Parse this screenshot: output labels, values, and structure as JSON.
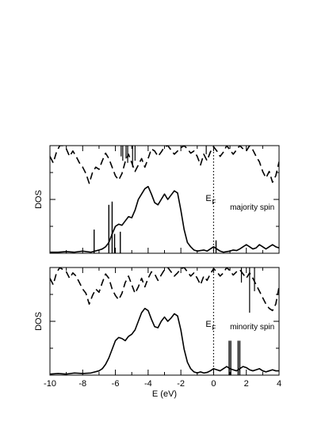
{
  "chart_data": [
    {
      "type": "line",
      "panel": "top",
      "title": "",
      "ylabel": "DOS",
      "xlabel": "",
      "xlim": [
        -10,
        4
      ],
      "x_ticks": [
        -10,
        -8,
        -6,
        -4,
        -2,
        0,
        2,
        4
      ],
      "show_tick_labels": false,
      "annotation": "majority spin",
      "fermi_label": "E",
      "fermi_sub": "F",
      "fermi_x": 0,
      "ylim": [
        0,
        1
      ],
      "series": [
        {
          "style": "dashed",
          "x": [
            -10,
            -9.8,
            -9.6,
            -9.4,
            -9.2,
            -9.0,
            -8.8,
            -8.6,
            -8.4,
            -8.2,
            -8.0,
            -7.8,
            -7.6,
            -7.4,
            -7.2,
            -7.0,
            -6.8,
            -6.6,
            -6.4,
            -6.2,
            -6.0,
            -5.8,
            -5.6,
            -5.4,
            -5.2,
            -5.0,
            -4.8,
            -4.6,
            -4.4,
            -4.2,
            -4.0,
            -3.8,
            -3.6,
            -3.4,
            -3.2,
            -3.0,
            -2.8,
            -2.6,
            -2.4,
            -2.2,
            -2.0,
            -1.8,
            -1.6,
            -1.4,
            -1.2,
            -1.0,
            -0.8,
            -0.6,
            -0.4,
            -0.2,
            0.0,
            0.2,
            0.4,
            0.6,
            0.8,
            1.0,
            1.2,
            1.4,
            1.6,
            1.8,
            2.0,
            2.2,
            2.4,
            2.6,
            2.8,
            3.0,
            3.2,
            3.4,
            3.6,
            3.8,
            4.0
          ],
          "y": [
            0.9,
            0.84,
            0.94,
            1.0,
            1.0,
            0.97,
            0.9,
            0.95,
            0.9,
            0.84,
            0.8,
            0.74,
            0.65,
            0.75,
            0.8,
            0.78,
            0.86,
            0.93,
            0.88,
            0.8,
            0.72,
            0.68,
            0.74,
            0.85,
            0.92,
            0.84,
            0.76,
            0.82,
            0.88,
            0.8,
            0.88,
            0.97,
            0.95,
            0.9,
            0.94,
            0.99,
            1.0,
            0.96,
            0.92,
            0.95,
            0.98,
            1.0,
            0.97,
            0.93,
            0.95,
            0.9,
            0.82,
            0.92,
            0.86,
            0.94,
            0.99,
            0.95,
            0.9,
            0.94,
            1.0,
            0.96,
            0.92,
            0.96,
            1.0,
            0.97,
            0.95,
            1.0,
            0.96,
            0.9,
            0.85,
            0.76,
            0.7,
            0.76,
            0.66,
            0.72,
            0.85
          ]
        },
        {
          "style": "solid",
          "x": [
            -10,
            -9.5,
            -9.0,
            -8.5,
            -8.0,
            -7.5,
            -7.0,
            -6.8,
            -6.6,
            -6.4,
            -6.2,
            -6.0,
            -5.8,
            -5.6,
            -5.4,
            -5.2,
            -5.0,
            -4.8,
            -4.6,
            -4.4,
            -4.2,
            -4.0,
            -3.8,
            -3.6,
            -3.4,
            -3.2,
            -3.0,
            -2.8,
            -2.6,
            -2.4,
            -2.2,
            -2.0,
            -1.8,
            -1.6,
            -1.4,
            -1.2,
            -1.0,
            -0.8,
            -0.6,
            -0.4,
            -0.2,
            0.0,
            0.2,
            0.4,
            0.6,
            0.8,
            1.0,
            1.2,
            1.4,
            1.6,
            1.8,
            2.0,
            2.2,
            2.4,
            2.6,
            2.8,
            3.0,
            3.2,
            3.4,
            3.6,
            3.8,
            4.0
          ],
          "y": [
            0.01,
            0.01,
            0.015,
            0.01,
            0.02,
            0.01,
            0.03,
            0.04,
            0.06,
            0.1,
            0.18,
            0.25,
            0.27,
            0.26,
            0.3,
            0.34,
            0.33,
            0.4,
            0.5,
            0.55,
            0.6,
            0.62,
            0.55,
            0.47,
            0.45,
            0.5,
            0.55,
            0.5,
            0.54,
            0.58,
            0.56,
            0.4,
            0.22,
            0.1,
            0.06,
            0.03,
            0.02,
            0.025,
            0.03,
            0.02,
            0.04,
            0.06,
            0.04,
            0.02,
            0.01,
            0.015,
            0.02,
            0.03,
            0.025,
            0.04,
            0.06,
            0.08,
            0.06,
            0.04,
            0.05,
            0.08,
            0.06,
            0.04,
            0.06,
            0.08,
            0.06,
            0.05
          ]
        }
      ],
      "spikes": [
        {
          "x": -7.3,
          "y": 0.22
        },
        {
          "x": -6.4,
          "y": 0.45
        },
        {
          "x": -6.2,
          "y": 0.48
        },
        {
          "x": -6.05,
          "y": 0.18
        },
        {
          "x": -5.7,
          "y": 0.2
        },
        {
          "x": 0.15,
          "y": 0.12
        }
      ],
      "top_spikes": [
        {
          "x": -5.65,
          "y": 0.9
        },
        {
          "x": -5.55,
          "y": 0.86
        },
        {
          "x": -5.35,
          "y": 0.88
        },
        {
          "x": -5.25,
          "y": 0.84
        },
        {
          "x": -4.95,
          "y": 0.8
        },
        {
          "x": -4.8,
          "y": 0.86
        },
        {
          "x": -0.45,
          "y": 0.92
        }
      ]
    },
    {
      "type": "line",
      "panel": "bottom",
      "title": "",
      "ylabel": "DOS",
      "xlabel": "E (eV)",
      "xlim": [
        -10,
        4
      ],
      "x_ticks": [
        -10,
        -8,
        -6,
        -4,
        -2,
        0,
        2,
        4
      ],
      "show_tick_labels": true,
      "annotation": "minority spin",
      "fermi_label": "E",
      "fermi_sub": "F",
      "fermi_x": 0,
      "ylim": [
        0,
        1
      ],
      "series": [
        {
          "style": "dashed",
          "x": [
            -10,
            -9.8,
            -9.6,
            -9.4,
            -9.2,
            -9.0,
            -8.8,
            -8.6,
            -8.4,
            -8.2,
            -8.0,
            -7.8,
            -7.6,
            -7.4,
            -7.2,
            -7.0,
            -6.8,
            -6.6,
            -6.4,
            -6.2,
            -6.0,
            -5.8,
            -5.6,
            -5.4,
            -5.2,
            -5.0,
            -4.8,
            -4.6,
            -4.4,
            -4.2,
            -4.0,
            -3.8,
            -3.6,
            -3.4,
            -3.2,
            -3.0,
            -2.8,
            -2.6,
            -2.4,
            -2.2,
            -2.0,
            -1.8,
            -1.6,
            -1.4,
            -1.2,
            -1.0,
            -0.8,
            -0.6,
            -0.4,
            -0.2,
            0.0,
            0.2,
            0.4,
            0.6,
            0.8,
            1.0,
            1.2,
            1.4,
            1.6,
            1.8,
            2.0,
            2.2,
            2.4,
            2.6,
            2.8,
            3.0,
            3.2,
            3.4,
            3.6,
            3.8,
            4.0
          ],
          "y": [
            0.9,
            0.84,
            0.95,
            1.0,
            0.98,
            0.96,
            0.9,
            0.95,
            0.92,
            0.86,
            0.8,
            0.76,
            0.66,
            0.74,
            0.8,
            0.77,
            0.86,
            0.94,
            0.9,
            0.8,
            0.74,
            0.7,
            0.76,
            0.86,
            0.92,
            0.84,
            0.76,
            0.82,
            0.9,
            0.82,
            0.9,
            0.96,
            0.94,
            0.88,
            0.93,
            0.98,
            1.0,
            0.96,
            0.92,
            0.95,
            0.99,
            1.0,
            0.96,
            0.92,
            0.95,
            0.9,
            0.84,
            0.92,
            0.88,
            0.94,
            0.99,
            0.96,
            0.92,
            0.95,
            1.0,
            0.97,
            0.93,
            0.96,
            0.98,
            0.94,
            0.9,
            0.95,
            0.9,
            0.84,
            0.78,
            0.72,
            0.66,
            0.62,
            0.6,
            0.66,
            0.82
          ]
        },
        {
          "style": "solid",
          "x": [
            -10,
            -9.5,
            -9.0,
            -8.5,
            -8.0,
            -7.5,
            -7.0,
            -6.8,
            -6.6,
            -6.4,
            -6.2,
            -6.0,
            -5.8,
            -5.6,
            -5.4,
            -5.2,
            -5.0,
            -4.8,
            -4.6,
            -4.4,
            -4.2,
            -4.0,
            -3.8,
            -3.6,
            -3.4,
            -3.2,
            -3.0,
            -2.8,
            -2.6,
            -2.4,
            -2.2,
            -2.0,
            -1.8,
            -1.6,
            -1.4,
            -1.2,
            -1.0,
            -0.8,
            -0.6,
            -0.4,
            -0.2,
            0.0,
            0.2,
            0.4,
            0.6,
            0.8,
            1.0,
            1.2,
            1.4,
            1.6,
            1.8,
            2.0,
            2.2,
            2.4,
            2.6,
            2.8,
            3.0,
            3.2,
            3.4,
            3.6,
            3.8,
            4.0
          ],
          "y": [
            0.01,
            0.015,
            0.01,
            0.02,
            0.015,
            0.02,
            0.04,
            0.06,
            0.1,
            0.16,
            0.24,
            0.32,
            0.35,
            0.34,
            0.32,
            0.36,
            0.38,
            0.42,
            0.5,
            0.58,
            0.62,
            0.6,
            0.52,
            0.45,
            0.44,
            0.5,
            0.54,
            0.5,
            0.53,
            0.57,
            0.55,
            0.42,
            0.24,
            0.12,
            0.06,
            0.03,
            0.02,
            0.03,
            0.02,
            0.025,
            0.04,
            0.06,
            0.05,
            0.04,
            0.06,
            0.08,
            0.06,
            0.05,
            0.04,
            0.06,
            0.08,
            0.07,
            0.05,
            0.04,
            0.05,
            0.06,
            0.04,
            0.03,
            0.04,
            0.05,
            0.04,
            0.04
          ]
        }
      ],
      "spikes": [
        {
          "x": 0.95,
          "y": 0.32
        },
        {
          "x": 1.05,
          "y": 0.32
        },
        {
          "x": 1.5,
          "y": 0.32
        },
        {
          "x": 1.6,
          "y": 0.32
        }
      ],
      "top_spikes": [
        {
          "x": 1.7,
          "y": 0.86
        },
        {
          "x": 2.2,
          "y": 0.58
        },
        {
          "x": 2.5,
          "y": 0.78
        }
      ]
    }
  ]
}
